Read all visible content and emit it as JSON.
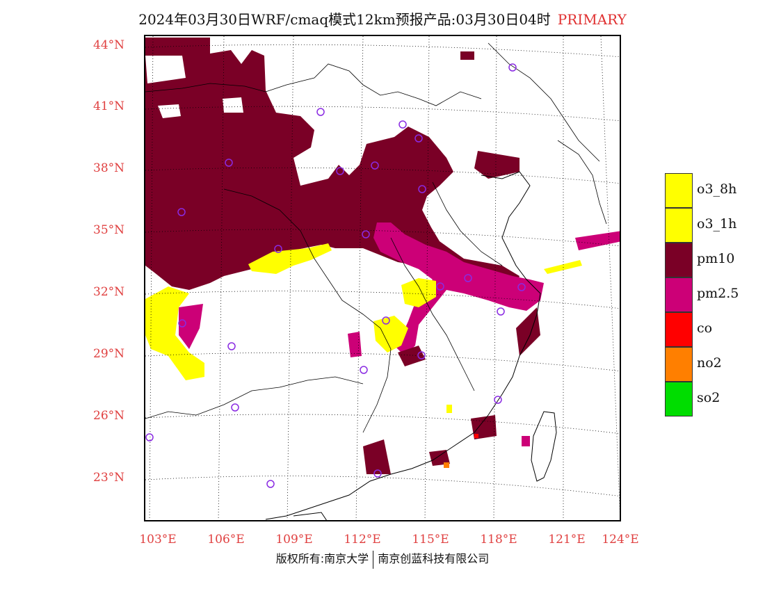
{
  "header": {
    "title": "2024年03月30日WRF/cmaq模式12km预报产品:03月30日04时",
    "tag": "PRIMARY"
  },
  "axes": {
    "lat_labels": [
      "44°N",
      "41°N",
      "38°N",
      "35°N",
      "32°N",
      "29°N",
      "26°N",
      "23°N"
    ],
    "lon_labels": [
      "103°E",
      "106°E",
      "109°E",
      "112°E",
      "115°E",
      "118°E",
      "121°E",
      "124°E"
    ]
  },
  "legend": {
    "items": [
      {
        "label": "o3_8h",
        "color": "#ffff00"
      },
      {
        "label": "o3_1h",
        "color": "#ffff00"
      },
      {
        "label": "pm10",
        "color": "#7a0026"
      },
      {
        "label": "pm2.5",
        "color": "#cc0077"
      },
      {
        "label": "co",
        "color": "#ff0000"
      },
      {
        "label": "no2",
        "color": "#ff7f00"
      },
      {
        "label": "so2",
        "color": "#00dd00"
      }
    ]
  },
  "footer": {
    "left": "版权所有:南京大学",
    "right": "南京创蓝科技有限公司"
  },
  "colors": {
    "axis_label": "#e04040",
    "station_marker": "#8a2be2",
    "pm10": "#7a0026",
    "pm25": "#cc0077",
    "o3": "#ffff00"
  }
}
